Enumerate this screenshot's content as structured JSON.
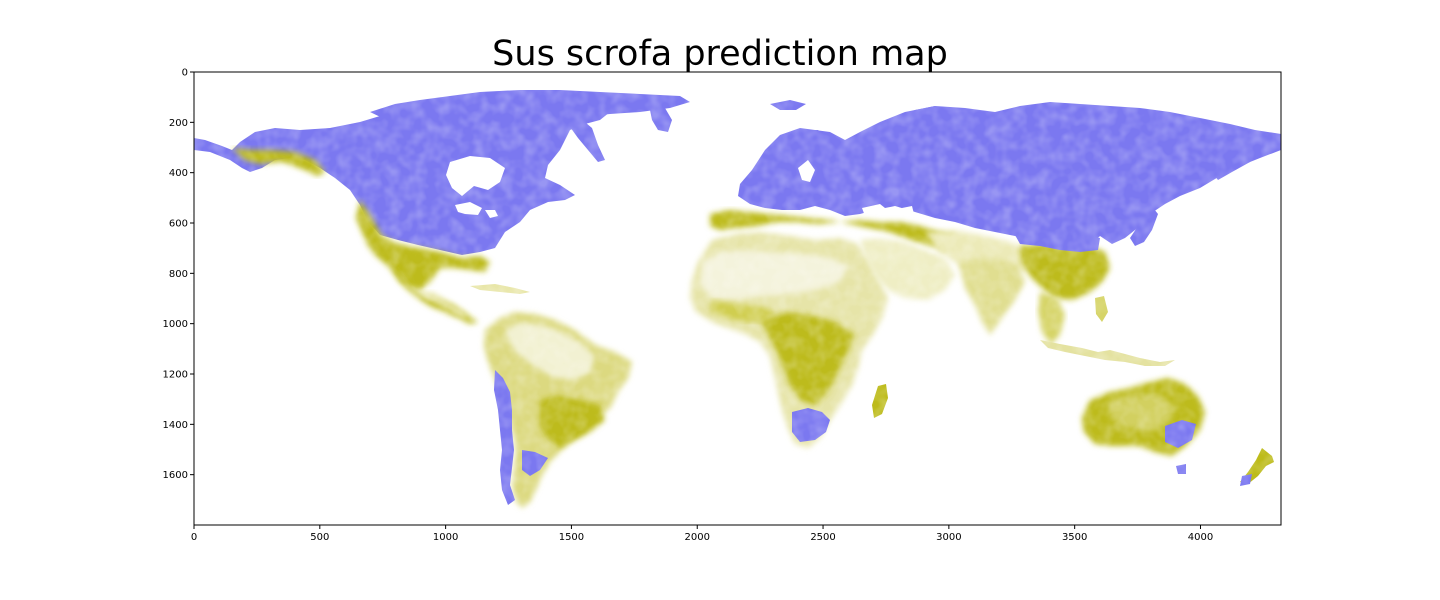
{
  "title": "Sus scrofa prediction map",
  "colors": {
    "low": "#ffffff",
    "mid": "#bdbb1a",
    "high": "#7b78f0",
    "axis": "#000000"
  },
  "chart_data": {
    "type": "heatmap",
    "title": "Sus scrofa prediction map",
    "xlabel": "",
    "ylabel": "",
    "xlim": [
      0,
      4320
    ],
    "ylim": [
      1800,
      0
    ],
    "x_ticks": [
      0,
      500,
      1000,
      1500,
      2000,
      2500,
      3000,
      3500,
      4000
    ],
    "y_ticks": [
      0,
      200,
      400,
      600,
      800,
      1000,
      1200,
      1400,
      1600
    ],
    "grid": false,
    "colormap": [
      "#ffffff",
      "#bdbb1a",
      "#7b78f0"
    ],
    "description_regions": [
      {
        "region": "North America",
        "level": "high"
      },
      {
        "region": "Northern Eurasia",
        "level": "high"
      },
      {
        "region": "Africa",
        "level": "mid"
      },
      {
        "region": "South America",
        "level": "mid"
      },
      {
        "region": "Australia",
        "level": "mid"
      },
      {
        "region": "Southern Africa",
        "level": "high"
      }
    ]
  }
}
